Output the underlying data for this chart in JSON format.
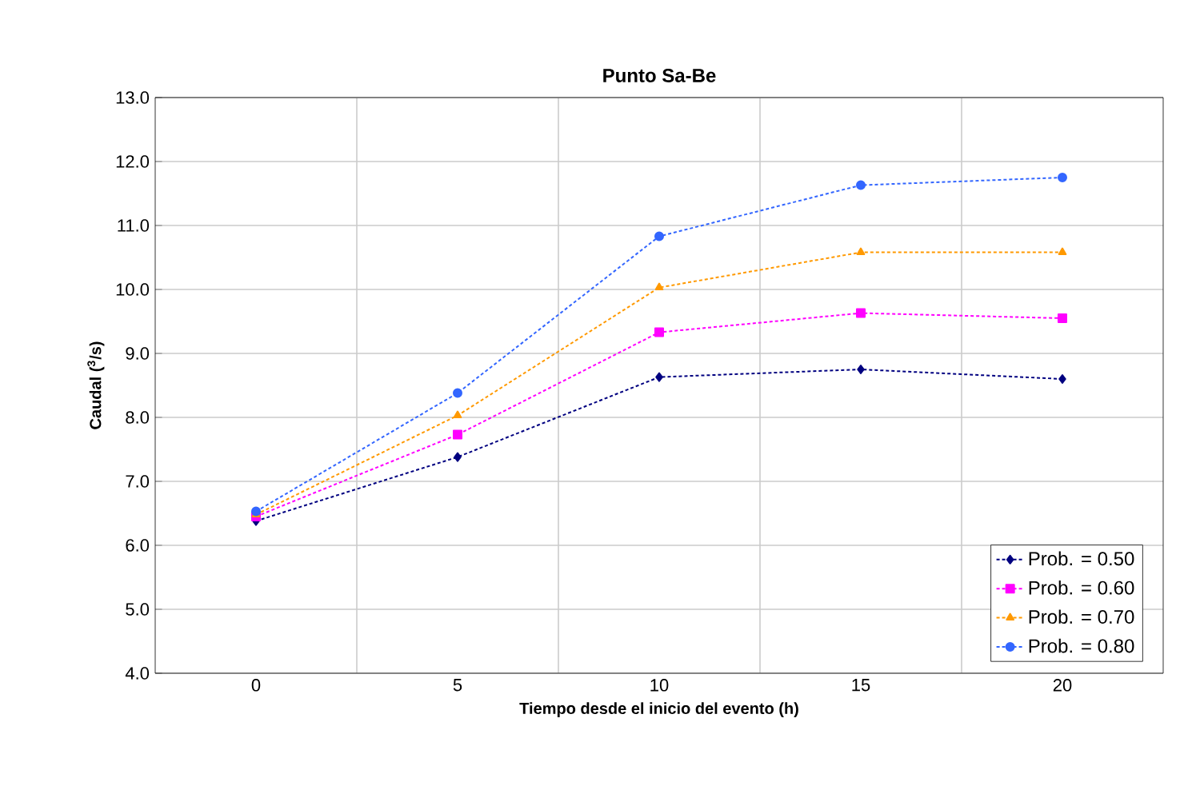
{
  "chart_data": {
    "type": "line",
    "title": "Punto Sa-Be",
    "xlabel": "Tiempo desde el inicio del evento (h)",
    "ylabel": "Caudal ($^{3}$/s)",
    "categories": [
      "0",
      "5",
      "10",
      "15",
      "20"
    ],
    "ylim": [
      4,
      13
    ],
    "yticks": [
      {
        "value": 4,
        "label": "4.0"
      },
      {
        "value": 5,
        "label": "5.0"
      },
      {
        "value": 6,
        "label": "6.0"
      },
      {
        "value": 7,
        "label": "7.0"
      },
      {
        "value": 8,
        "label": "8.0"
      },
      {
        "value": 9,
        "label": "9.0"
      },
      {
        "value": 10,
        "label": "10.0"
      },
      {
        "value": 11,
        "label": "11.0"
      },
      {
        "value": 12,
        "label": "12.0"
      },
      {
        "value": 13,
        "label": "13.0"
      }
    ],
    "grid": true,
    "legend": "bottom right",
    "line_style": "dotted",
    "series": [
      {
        "name": "Prob. = 0.50",
        "color": "#000080",
        "marker": "diamond",
        "values": [
          6.38,
          7.38,
          8.63,
          8.75,
          8.6
        ]
      },
      {
        "name": "Prob. = 0.60",
        "color": "#ff00ff",
        "marker": "square",
        "values": [
          6.45,
          7.73,
          9.33,
          9.63,
          9.55
        ]
      },
      {
        "name": "Prob. = 0.70",
        "color": "#ff9900",
        "marker": "triangle",
        "values": [
          6.48,
          8.03,
          10.03,
          10.58,
          10.58
        ]
      },
      {
        "name": "Prob. = 0.80",
        "color": "#3366ff",
        "marker": "circle",
        "values": [
          6.53,
          8.38,
          10.83,
          11.63,
          11.75
        ]
      }
    ]
  }
}
